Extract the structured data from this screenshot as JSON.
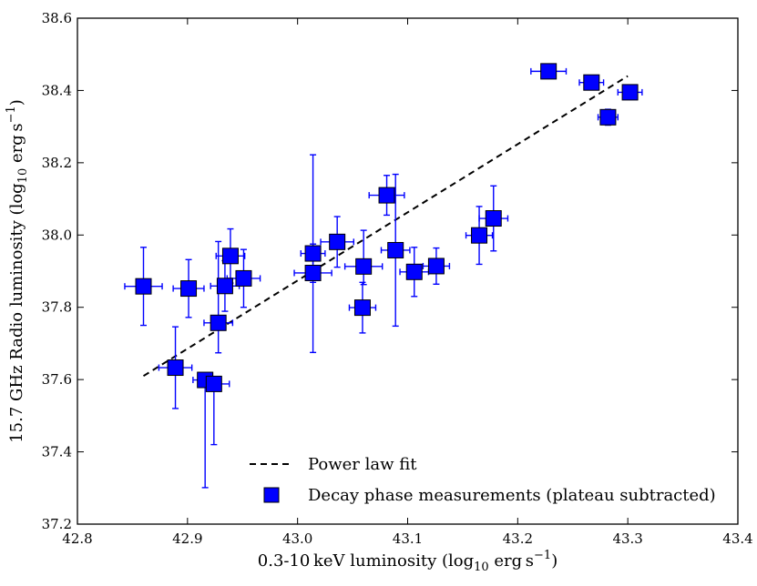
{
  "chart_data": {
    "type": "scatter",
    "title": "",
    "xlabel": "0.3-10 keV luminosity (log10 erg s−1)",
    "xlabel_parts": {
      "main": "0.3-10 keV luminosity (log",
      "sub": "10",
      "unit": " erg s",
      "sup": "−1",
      "close": ")"
    },
    "ylabel": "15.7 GHz Radio luminosity (log10 erg s−1)",
    "ylabel_parts": {
      "main": "15.7 GHz Radio luminosity (log",
      "sub": "10",
      "unit": " erg s",
      "sup": "−1",
      "close": ")"
    },
    "xlim": [
      42.8,
      43.4
    ],
    "ylim": [
      37.2,
      38.6
    ],
    "xticks": [
      "42.8",
      "42.9",
      "43.0",
      "43.1",
      "43.2",
      "43.3",
      "43.4"
    ],
    "yticks": [
      "37.2",
      "37.4",
      "37.6",
      "37.8",
      "38.0",
      "38.2",
      "38.4",
      "38.6"
    ],
    "grid": false,
    "legend_position": "bottom-right",
    "colors": {
      "marker": "#0000ff",
      "marker_edge": "#000000",
      "fit": "#000000"
    },
    "series": [
      {
        "name": "Decay phase measurements (plateau subtracted)",
        "marker": "square",
        "points": [
          {
            "x": 42.86,
            "y": 37.858,
            "xerr": 0.017,
            "yerr_lo": 0.108,
            "yerr_hi": 0.108
          },
          {
            "x": 42.889,
            "y": 37.633,
            "xerr": 0.015,
            "yerr_lo": 0.113,
            "yerr_hi": 0.113
          },
          {
            "x": 42.901,
            "y": 37.852,
            "xerr": 0.014,
            "yerr_lo": 0.08,
            "yerr_hi": 0.08
          },
          {
            "x": 42.916,
            "y": 37.599,
            "xerr": 0.011,
            "yerr_lo": 0.298,
            "yerr_hi": 0.0
          },
          {
            "x": 42.924,
            "y": 37.588,
            "xerr": 0.014,
            "yerr_lo": 0.168,
            "yerr_hi": 0.0
          },
          {
            "x": 42.928,
            "y": 37.757,
            "xerr": 0.013,
            "yerr_lo": 0.083,
            "yerr_hi": 0.225
          },
          {
            "x": 42.934,
            "y": 37.859,
            "xerr": 0.013,
            "yerr_lo": 0.07,
            "yerr_hi": 0.07
          },
          {
            "x": 42.939,
            "y": 37.942,
            "xerr": 0.013,
            "yerr_lo": 0.075,
            "yerr_hi": 0.075
          },
          {
            "x": 42.951,
            "y": 37.88,
            "xerr": 0.015,
            "yerr_lo": 0.08,
            "yerr_hi": 0.08
          },
          {
            "x": 43.014,
            "y": 37.949,
            "xerr": 0.011,
            "yerr_lo": 0.08,
            "yerr_hi": 0.273
          },
          {
            "x": 43.014,
            "y": 37.895,
            "xerr": 0.017,
            "yerr_lo": 0.22,
            "yerr_hi": 0.08
          },
          {
            "x": 43.036,
            "y": 37.981,
            "xerr": 0.015,
            "yerr_lo": 0.07,
            "yerr_hi": 0.07
          },
          {
            "x": 43.059,
            "y": 37.799,
            "xerr": 0.012,
            "yerr_lo": 0.07,
            "yerr_hi": 0.07
          },
          {
            "x": 43.06,
            "y": 37.913,
            "xerr": 0.017,
            "yerr_lo": 0.05,
            "yerr_hi": 0.1
          },
          {
            "x": 43.081,
            "y": 38.11,
            "xerr": 0.016,
            "yerr_lo": 0.055,
            "yerr_hi": 0.055
          },
          {
            "x": 43.089,
            "y": 37.958,
            "xerr": 0.013,
            "yerr_lo": 0.21,
            "yerr_hi": 0.21
          },
          {
            "x": 43.106,
            "y": 37.898,
            "xerr": 0.013,
            "yerr_lo": 0.068,
            "yerr_hi": 0.068
          },
          {
            "x": 43.126,
            "y": 37.914,
            "xerr": 0.012,
            "yerr_lo": 0.05,
            "yerr_hi": 0.05
          },
          {
            "x": 43.165,
            "y": 37.999,
            "xerr": 0.012,
            "yerr_lo": 0.08,
            "yerr_hi": 0.08
          },
          {
            "x": 43.178,
            "y": 38.046,
            "xerr": 0.013,
            "yerr_lo": 0.09,
            "yerr_hi": 0.09
          },
          {
            "x": 43.228,
            "y": 38.453,
            "xerr": 0.016,
            "yerr_lo": 0.0,
            "yerr_hi": 0.0
          },
          {
            "x": 43.267,
            "y": 38.422,
            "xerr": 0.011,
            "yerr_lo": 0.0,
            "yerr_hi": 0.0
          },
          {
            "x": 43.282,
            "y": 38.326,
            "xerr": 0.009,
            "yerr_lo": 0.022,
            "yerr_hi": 0.022
          },
          {
            "x": 43.302,
            "y": 38.395,
            "xerr": 0.011,
            "yerr_lo": 0.0,
            "yerr_hi": 0.0
          }
        ]
      }
    ],
    "fit": {
      "name": "Power law fit",
      "style": "dashed",
      "x": [
        42.86,
        43.3
      ],
      "y": [
        37.61,
        38.44
      ]
    },
    "legend": [
      {
        "label": "Power law fit",
        "kind": "dashed-line"
      },
      {
        "label": "Decay phase measurements (plateau subtracted)",
        "kind": "square-marker"
      }
    ]
  }
}
